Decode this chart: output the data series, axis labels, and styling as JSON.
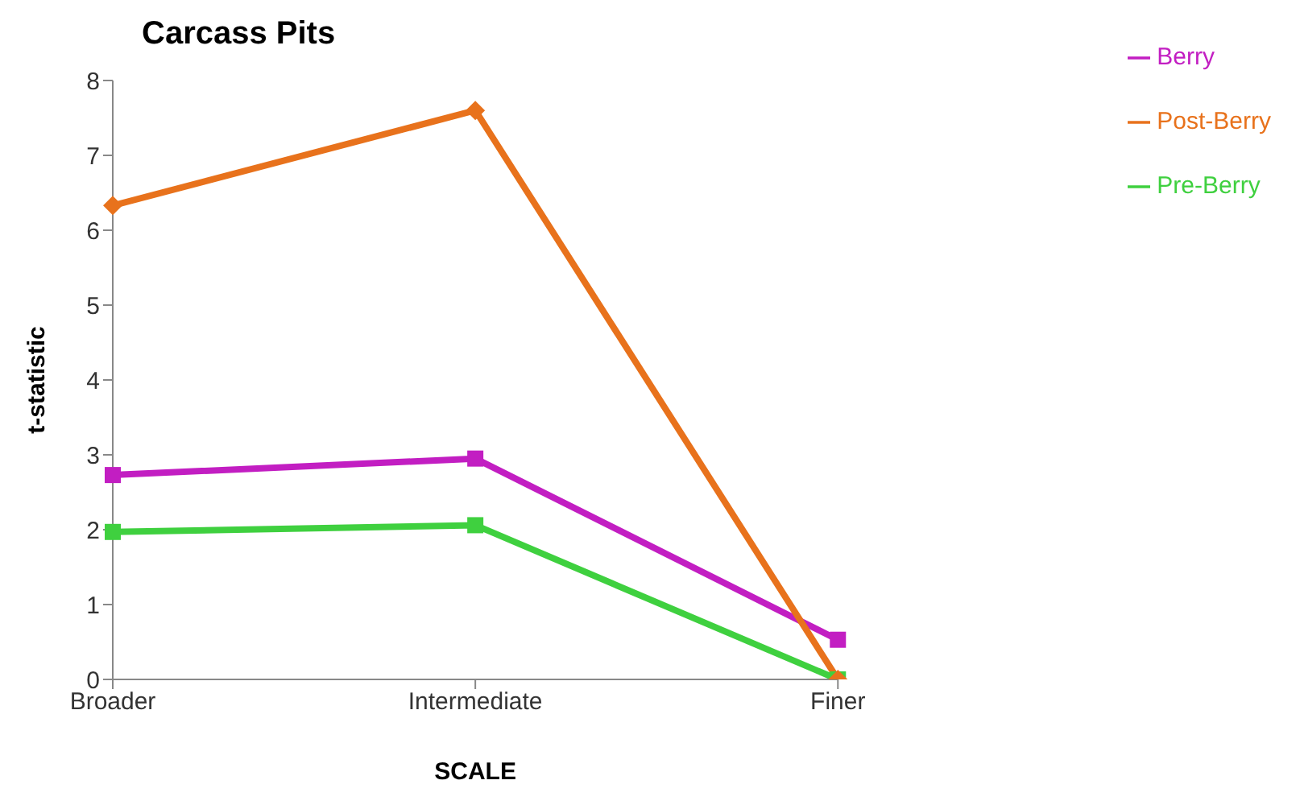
{
  "chart_data": {
    "type": "line",
    "title": "Carcass Pits",
    "xlabel": "SCALE",
    "ylabel": "t-statistic",
    "categories": [
      "Broader",
      "Intermediate",
      "Finer"
    ],
    "series": [
      {
        "name": "Pre-Berry",
        "color": "#3fd03f",
        "marker": "square",
        "values": [
          1.97,
          2.06,
          0
        ]
      },
      {
        "name": "Berry",
        "color": "#c21ec2",
        "marker": "square",
        "values": [
          2.73,
          2.95,
          0.53
        ]
      },
      {
        "name": "Post-Berry",
        "color": "#e8721c",
        "marker": "diamond",
        "values": [
          6.33,
          7.6,
          0
        ]
      }
    ],
    "ylim": [
      0,
      8
    ],
    "yticks": [
      0,
      1,
      2,
      3,
      4,
      5,
      6,
      7,
      8
    ],
    "grid": false,
    "legend": "top right"
  }
}
